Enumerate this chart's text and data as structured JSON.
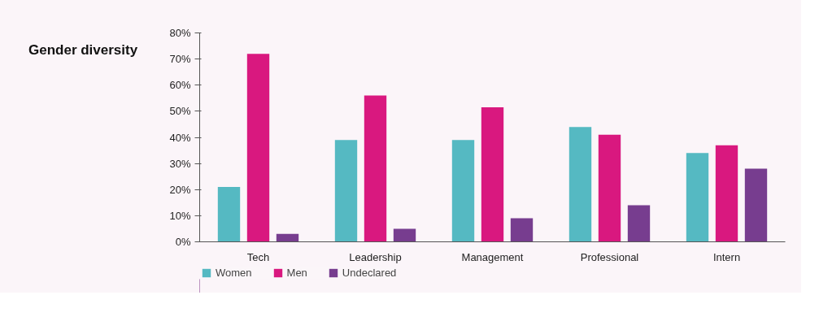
{
  "chart_data": {
    "type": "bar",
    "title": "Gender diversity",
    "categories": [
      "Tech",
      "Leadership",
      "Management",
      "Professional",
      "Intern"
    ],
    "series": [
      {
        "name": "Women",
        "color": "#55b9c2",
        "values": [
          21,
          39,
          39,
          44,
          34
        ]
      },
      {
        "name": "Men",
        "color": "#d9187f",
        "values": [
          72,
          56,
          51.5,
          41,
          37
        ]
      },
      {
        "name": "Undeclared",
        "color": "#773d8f",
        "values": [
          3,
          5,
          9,
          14,
          28
        ]
      }
    ],
    "ylim": [
      0,
      80
    ],
    "yticks": [
      {
        "value": 0,
        "label": "0%"
      },
      {
        "value": 10,
        "label": "10%"
      },
      {
        "value": 20,
        "label": "20%"
      },
      {
        "value": 30,
        "label": "30%"
      },
      {
        "value": 40,
        "label": "40%"
      },
      {
        "value": 50,
        "label": "50%"
      },
      {
        "value": 60,
        "label": "60%"
      },
      {
        "value": 70,
        "label": "70%"
      },
      {
        "value": 80,
        "label": "80%"
      }
    ],
    "grid": false,
    "legend": "bottom left"
  }
}
